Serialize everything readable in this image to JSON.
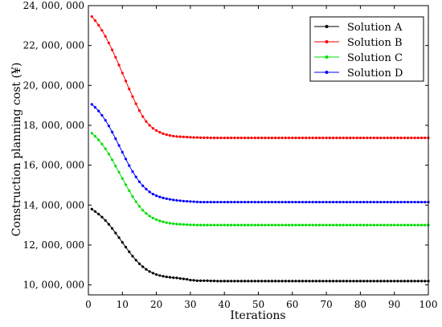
{
  "chart_data": {
    "type": "line",
    "title": "",
    "xlabel": "Iterations",
    "ylabel": "Construction planning cost (¥)",
    "xlim": [
      0,
      100
    ],
    "ylim": [
      9500000,
      24000000
    ],
    "x_ticks": [
      0,
      10,
      20,
      30,
      40,
      50,
      60,
      70,
      80,
      90,
      100
    ],
    "x_tick_labels": [
      "0",
      "10",
      "20",
      "30",
      "40",
      "50",
      "60",
      "70",
      "80",
      "90",
      "100"
    ],
    "y_ticks": [
      10000000,
      12000000,
      14000000,
      16000000,
      18000000,
      20000000,
      22000000,
      24000000
    ],
    "y_tick_labels": [
      "10, 000, 000",
      "12, 000, 000",
      "14, 000, 000",
      "16, 000, 000",
      "18, 000, 000",
      "20, 000, 000",
      "22, 000, 000",
      "24, 000, 000"
    ],
    "grid": false,
    "legend_position": "top-right",
    "x": [
      1,
      2,
      3,
      4,
      5,
      6,
      7,
      8,
      9,
      10,
      11,
      12,
      13,
      14,
      15,
      16,
      17,
      18,
      19,
      20,
      21,
      22,
      23,
      24,
      25,
      26,
      27,
      28,
      29,
      30,
      31,
      32,
      33,
      34,
      35,
      36,
      37,
      38,
      39,
      40,
      41,
      42,
      43,
      44,
      45,
      46,
      47,
      48,
      49,
      50,
      51,
      52,
      53,
      54,
      55,
      56,
      57,
      58,
      59,
      60,
      61,
      62,
      63,
      64,
      65,
      66,
      67,
      68,
      69,
      70,
      71,
      72,
      73,
      74,
      75,
      76,
      77,
      78,
      79,
      80,
      81,
      82,
      83,
      84,
      85,
      86,
      87,
      88,
      89,
      90,
      91,
      92,
      93,
      94,
      95,
      96,
      97,
      98,
      99,
      100
    ],
    "series": [
      {
        "name": "Solution A",
        "color": "#000000",
        "values": [
          13800000,
          13680000,
          13550000,
          13400000,
          13230000,
          13040000,
          12830000,
          12600000,
          12370000,
          12130000,
          11890000,
          11660000,
          11440000,
          11240000,
          11060000,
          10910000,
          10780000,
          10670000,
          10590000,
          10520000,
          10470000,
          10430000,
          10400000,
          10380000,
          10360000,
          10350000,
          10320000,
          10300000,
          10280000,
          10240000,
          10230000,
          10210000,
          10210000,
          10210000,
          10210000,
          10200000,
          10200000,
          10190000,
          10190000,
          10190000,
          10190000,
          10190000,
          10190000,
          10190000,
          10190000,
          10190000,
          10190000,
          10190000,
          10190000,
          10190000,
          10190000,
          10190000,
          10190000,
          10190000,
          10190000,
          10190000,
          10190000,
          10190000,
          10190000,
          10190000,
          10190000,
          10190000,
          10190000,
          10190000,
          10190000,
          10190000,
          10190000,
          10190000,
          10190000,
          10190000,
          10190000,
          10190000,
          10190000,
          10190000,
          10190000,
          10190000,
          10190000,
          10190000,
          10190000,
          10190000,
          10190000,
          10190000,
          10190000,
          10190000,
          10190000,
          10190000,
          10190000,
          10190000,
          10190000,
          10190000,
          10190000,
          10190000,
          10190000,
          10190000,
          10190000,
          10190000,
          10190000,
          10190000,
          10190000,
          10190000
        ]
      },
      {
        "name": "Solution B",
        "color": "#ff0000",
        "values": [
          23450000,
          23250000,
          23020000,
          22760000,
          22460000,
          22130000,
          21780000,
          21410000,
          21020000,
          20620000,
          20220000,
          19820000,
          19440000,
          19080000,
          18740000,
          18440000,
          18190000,
          18000000,
          17850000,
          17740000,
          17650000,
          17580000,
          17530000,
          17490000,
          17460000,
          17440000,
          17430000,
          17420000,
          17410000,
          17400000,
          17390000,
          17390000,
          17380000,
          17380000,
          17380000,
          17370000,
          17370000,
          17370000,
          17370000,
          17370000,
          17370000,
          17370000,
          17370000,
          17370000,
          17370000,
          17370000,
          17370000,
          17370000,
          17370000,
          17370000,
          17370000,
          17370000,
          17370000,
          17370000,
          17370000,
          17370000,
          17370000,
          17370000,
          17370000,
          17370000,
          17370000,
          17370000,
          17370000,
          17370000,
          17370000,
          17370000,
          17370000,
          17370000,
          17370000,
          17370000,
          17370000,
          17370000,
          17370000,
          17370000,
          17370000,
          17370000,
          17370000,
          17370000,
          17370000,
          17370000,
          17370000,
          17370000,
          17370000,
          17370000,
          17370000,
          17370000,
          17370000,
          17370000,
          17370000,
          17370000,
          17370000,
          17370000,
          17370000,
          17370000,
          17370000,
          17370000,
          17370000,
          17370000,
          17370000,
          17370000
        ]
      },
      {
        "name": "Solution C",
        "color": "#00dd00",
        "values": [
          17600000,
          17450000,
          17270000,
          17060000,
          16820000,
          16560000,
          16270000,
          15960000,
          15650000,
          15330000,
          15020000,
          14720000,
          14430000,
          14170000,
          13940000,
          13740000,
          13580000,
          13450000,
          13350000,
          13270000,
          13210000,
          13160000,
          13120000,
          13090000,
          13070000,
          13050000,
          13040000,
          13030000,
          13020000,
          13010000,
          13010000,
          13000000,
          13000000,
          13000000,
          13000000,
          13000000,
          13000000,
          13000000,
          13000000,
          13000000,
          13000000,
          13000000,
          13000000,
          13000000,
          13000000,
          13000000,
          13000000,
          13000000,
          13000000,
          13000000,
          13000000,
          13000000,
          13000000,
          13000000,
          13000000,
          13000000,
          13000000,
          13000000,
          13000000,
          13000000,
          13000000,
          13000000,
          13000000,
          13000000,
          13000000,
          13000000,
          13000000,
          13000000,
          13000000,
          13000000,
          13000000,
          13000000,
          13000000,
          13000000,
          13000000,
          13000000,
          13000000,
          13000000,
          13000000,
          13000000,
          13000000,
          13000000,
          13000000,
          13000000,
          13000000,
          13000000,
          13000000,
          13000000,
          13000000,
          13000000,
          13000000,
          13000000,
          13000000,
          13000000,
          13000000,
          13000000,
          13000000,
          13000000,
          13000000,
          13000000
        ]
      },
      {
        "name": "Solution D",
        "color": "#0000ff",
        "values": [
          19050000,
          18900000,
          18720000,
          18500000,
          18250000,
          17970000,
          17660000,
          17330000,
          16990000,
          16650000,
          16310000,
          15980000,
          15680000,
          15410000,
          15170000,
          14970000,
          14800000,
          14660000,
          14550000,
          14470000,
          14410000,
          14360000,
          14320000,
          14290000,
          14260000,
          14240000,
          14220000,
          14200000,
          14190000,
          14180000,
          14170000,
          14160000,
          14150000,
          14150000,
          14150000,
          14150000,
          14150000,
          14150000,
          14150000,
          14150000,
          14150000,
          14150000,
          14150000,
          14150000,
          14150000,
          14150000,
          14150000,
          14150000,
          14150000,
          14150000,
          14150000,
          14150000,
          14150000,
          14150000,
          14150000,
          14150000,
          14150000,
          14150000,
          14150000,
          14150000,
          14150000,
          14150000,
          14150000,
          14150000,
          14150000,
          14150000,
          14150000,
          14150000,
          14150000,
          14150000,
          14150000,
          14150000,
          14150000,
          14150000,
          14150000,
          14150000,
          14150000,
          14150000,
          14150000,
          14150000,
          14150000,
          14150000,
          14150000,
          14150000,
          14150000,
          14150000,
          14150000,
          14150000,
          14150000,
          14150000,
          14150000,
          14150000,
          14150000,
          14150000,
          14150000,
          14150000,
          14150000,
          14150000,
          14150000,
          14150000
        ]
      }
    ]
  }
}
